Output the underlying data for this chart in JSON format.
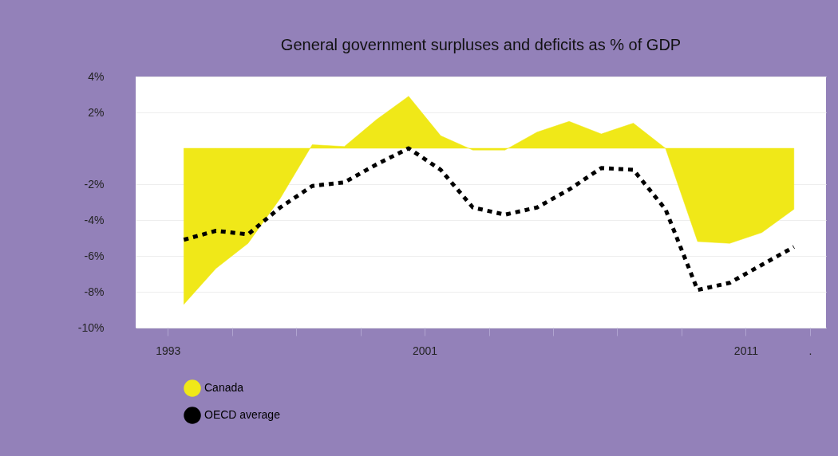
{
  "chart_data": {
    "type": "area",
    "title": "General government surpluses and deficits as % of GDP",
    "x": [
      1993,
      1994,
      1995,
      1996,
      1997,
      1998,
      1999,
      2000,
      2001,
      2002,
      2003,
      2004,
      2005,
      2006,
      2007,
      2008,
      2009,
      2010,
      2011,
      2012
    ],
    "series": [
      {
        "name": "Canada",
        "color": "#f0e818",
        "values": [
          -8.7,
          -6.7,
          -5.3,
          -2.8,
          0.2,
          0.1,
          1.6,
          2.9,
          0.7,
          -0.1,
          -0.1,
          0.9,
          1.5,
          0.8,
          1.4,
          0,
          -5.2,
          -5.3,
          -4.7,
          -3.4
        ]
      },
      {
        "name": "OECD average",
        "color": "#000000",
        "type": "line",
        "line_style": "dotted",
        "values": [
          -5.1,
          -4.6,
          -4.8,
          -3.3,
          -2.1,
          -1.9,
          -0.9,
          0,
          -1.2,
          -3.3,
          -3.7,
          -3.3,
          -2.3,
          -1.1,
          -1.2,
          -3.4,
          -7.9,
          -7.5,
          -6.5,
          -5.5
        ]
      }
    ],
    "xlim": [
      1991.5,
      2013
    ],
    "xticks": [
      {
        "value": 1992.5,
        "label": "1993"
      },
      {
        "value": 1994.5,
        "label": null
      },
      {
        "value": 1996.5,
        "label": null
      },
      {
        "value": 1998.5,
        "label": null
      },
      {
        "value": 2000.5,
        "label": "2001"
      },
      {
        "value": 2002.5,
        "label": null
      },
      {
        "value": 2004.5,
        "label": null
      },
      {
        "value": 2006.5,
        "label": null
      },
      {
        "value": 2008.5,
        "label": null
      },
      {
        "value": 2010.5,
        "label": "2011"
      },
      {
        "value": 2012.5,
        "label": "."
      }
    ],
    "ylim": [
      -10,
      4
    ],
    "yticks": [
      {
        "value": 4,
        "label": "4%"
      },
      {
        "value": 2,
        "label": "2%"
      },
      {
        "value": -2,
        "label": "-2%"
      },
      {
        "value": -4,
        "label": "-4%"
      },
      {
        "value": -6,
        "label": "-6%"
      },
      {
        "value": -8,
        "label": "-8%"
      },
      {
        "value": -10,
        "label": "-10%"
      }
    ],
    "grid": "y",
    "legend": "bottom"
  }
}
